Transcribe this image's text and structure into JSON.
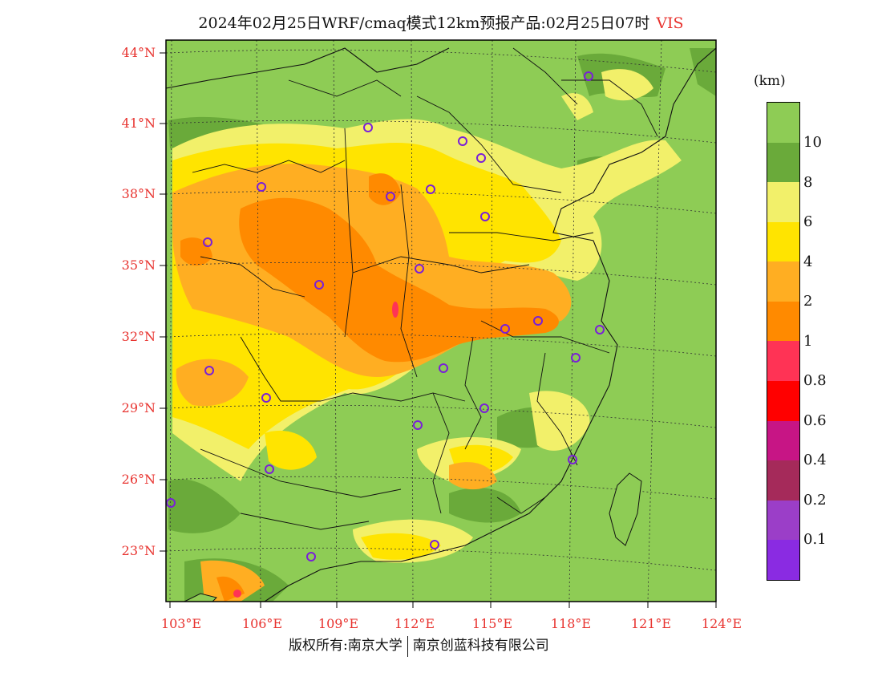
{
  "title": {
    "main": "2024年02月25日WRF/cmaq模式12km预报产品:02月25日07时",
    "variable": "VIS"
  },
  "axes": {
    "lat_labels": [
      "44°N",
      "41°N",
      "38°N",
      "35°N",
      "32°N",
      "29°N",
      "26°N",
      "23°N"
    ],
    "lon_labels": [
      "103°E",
      "106°E",
      "109°E",
      "112°E",
      "115°E",
      "118°E",
      "121°E",
      "124°E"
    ]
  },
  "legend": {
    "unit": "(km)",
    "labels": [
      "10",
      "8",
      "6",
      "4",
      "2",
      "1",
      "0.8",
      "0.6",
      "0.4",
      "0.2",
      "0.1"
    ],
    "colors": [
      "#8ecc55",
      "#6aaa3a",
      "#f2f06a",
      "#ffe400",
      "#ffae22",
      "#ff8a00",
      "#ff3355",
      "#ff0000",
      "#c71585",
      "#a52a5a",
      "#9b3ec8",
      "#8a2be2"
    ]
  },
  "footer": {
    "left": "版权所有:南京大学",
    "right": "南京创蓝科技有限公司"
  },
  "colors": {
    "accent_red": "#e8332f",
    "base_green": "#8ecc55",
    "dark_green": "#6aaa3a",
    "pale_yellow": "#f2f06a",
    "yellow": "#ffe400",
    "light_orange": "#ffae22",
    "orange": "#ff8a00",
    "city_marker": "#7a1fd8"
  }
}
